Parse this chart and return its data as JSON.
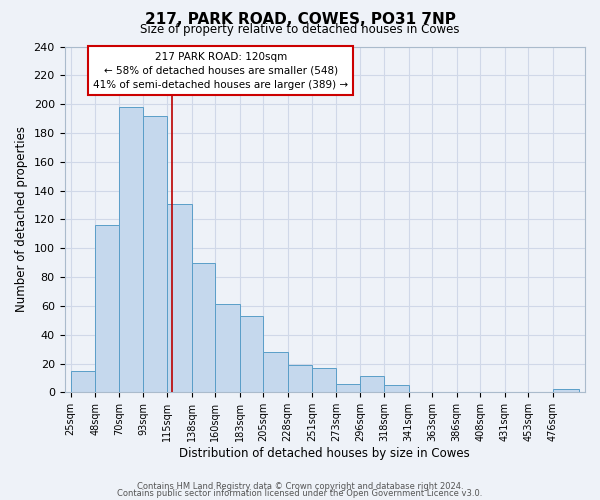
{
  "title": "217, PARK ROAD, COWES, PO31 7NP",
  "subtitle": "Size of property relative to detached houses in Cowes",
  "xlabel": "Distribution of detached houses by size in Cowes",
  "ylabel": "Number of detached properties",
  "footer_line1": "Contains HM Land Registry data © Crown copyright and database right 2024.",
  "footer_line2": "Contains public sector information licensed under the Open Government Licence v3.0.",
  "bin_labels": [
    "25sqm",
    "48sqm",
    "70sqm",
    "93sqm",
    "115sqm",
    "138sqm",
    "160sqm",
    "183sqm",
    "205sqm",
    "228sqm",
    "251sqm",
    "273sqm",
    "296sqm",
    "318sqm",
    "341sqm",
    "363sqm",
    "386sqm",
    "408sqm",
    "431sqm",
    "453sqm",
    "476sqm"
  ],
  "bin_left_edges": [
    25,
    48,
    70,
    93,
    115,
    138,
    160,
    183,
    205,
    228,
    251,
    273,
    296,
    318,
    341,
    363,
    386,
    408,
    431,
    453,
    476
  ],
  "bin_edges": [
    25,
    48,
    70,
    93,
    115,
    138,
    160,
    183,
    205,
    228,
    251,
    273,
    296,
    318,
    341,
    363,
    386,
    408,
    431,
    453,
    476,
    500
  ],
  "bar_heights": [
    15,
    116,
    198,
    192,
    131,
    90,
    61,
    53,
    28,
    19,
    17,
    6,
    11,
    5,
    0,
    0,
    0,
    0,
    0,
    0,
    2
  ],
  "bar_color": "#c5d8ed",
  "bar_edge_color": "#5a9ec8",
  "grid_color": "#d0d8e8",
  "bg_color": "#eef2f8",
  "vline_x": 120,
  "vline_color": "#bb0000",
  "ylim": [
    0,
    240
  ],
  "yticks": [
    0,
    20,
    40,
    60,
    80,
    100,
    120,
    140,
    160,
    180,
    200,
    220,
    240
  ],
  "annotation_title": "217 PARK ROAD: 120sqm",
  "annotation_line1": "← 58% of detached houses are smaller (548)",
  "annotation_line2": "41% of semi-detached houses are larger (389) →",
  "box_facecolor": "white",
  "box_edgecolor": "#cc0000"
}
